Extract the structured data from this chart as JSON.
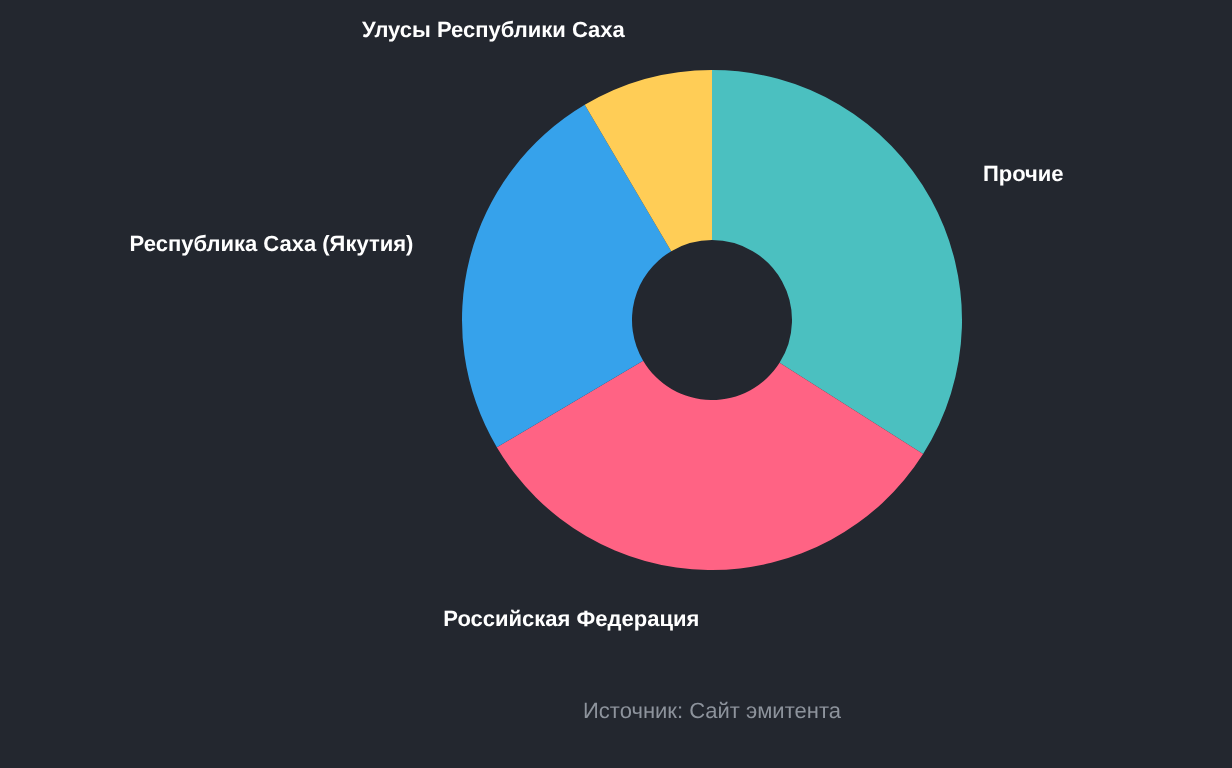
{
  "chart_data": {
    "type": "donut",
    "categories": [
      "Прочие",
      "Российская Федерация",
      "Республика Саха (Якутия)",
      "Улусы Республики Саха"
    ],
    "values": [
      34,
      32.5,
      25,
      8.5
    ],
    "colors": [
      "#4bc0c0",
      "#ff6384",
      "#36a2eb",
      "#ffcd56"
    ],
    "annotations": [
      "Источник: Сайт эмитента"
    ]
  }
}
